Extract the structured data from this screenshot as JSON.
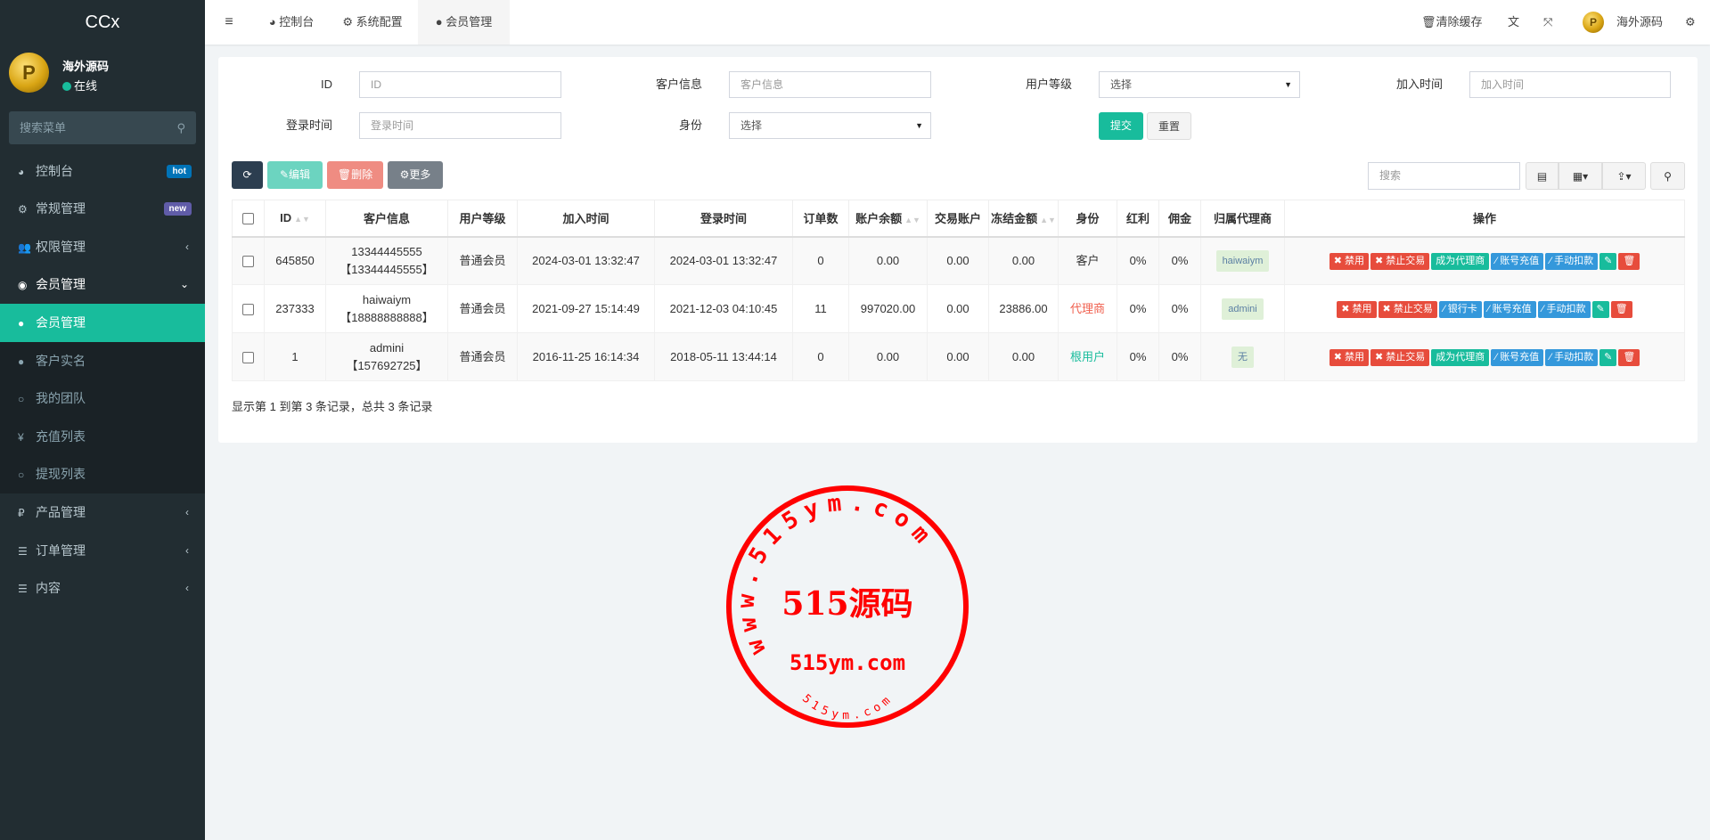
{
  "app": {
    "logo": "CCx"
  },
  "user": {
    "name": "海外源码",
    "status": "在线"
  },
  "sidebar": {
    "search_placeholder": "搜索菜单",
    "items": [
      {
        "label": "控制台",
        "icon": "dashboard-icon",
        "badge": "hot",
        "badge_color": "#0073b7"
      },
      {
        "label": "常规管理",
        "icon": "cogs-icon",
        "badge": "new",
        "badge_color": "#605ca8"
      },
      {
        "label": "权限管理",
        "icon": "group-icon"
      },
      {
        "label": "会员管理",
        "icon": "user-circle-icon",
        "expanded": true
      },
      {
        "label": "产品管理",
        "icon": "ruble-icon"
      },
      {
        "label": "订单管理",
        "icon": "list-icon"
      },
      {
        "label": "内容",
        "icon": "list-icon"
      }
    ],
    "submenu": [
      {
        "label": "会员管理",
        "icon": "user-icon",
        "active": true
      },
      {
        "label": "客户实名",
        "icon": "user-icon"
      },
      {
        "label": "我的团队",
        "icon": "circle-icon"
      },
      {
        "label": "充值列表",
        "icon": "yen-icon"
      },
      {
        "label": "提现列表",
        "icon": "circle-icon"
      }
    ]
  },
  "topbar": {
    "tabs": [
      {
        "label": "控制台",
        "icon": "dashboard-icon"
      },
      {
        "label": "系统配置",
        "icon": "gear-icon"
      },
      {
        "label": "会员管理",
        "icon": "user-icon",
        "active": true
      }
    ],
    "clear_cache": "清除缓存",
    "username": "海外源码"
  },
  "filters": {
    "id": {
      "label": "ID",
      "placeholder": "ID"
    },
    "customer": {
      "label": "客户信息",
      "placeholder": "客户信息"
    },
    "level": {
      "label": "用户等级",
      "value": "选择"
    },
    "join_time": {
      "label": "加入时间",
      "placeholder": "加入时间"
    },
    "login_time": {
      "label": "登录时间",
      "placeholder": "登录时间"
    },
    "identity": {
      "label": "身份",
      "value": "选择"
    },
    "submit": "提交",
    "reset": "重置"
  },
  "toolbar": {
    "edit": "编辑",
    "delete": "删除",
    "more": "更多",
    "search_placeholder": "搜索"
  },
  "table": {
    "columns": [
      "ID",
      "客户信息",
      "用户等级",
      "加入时间",
      "登录时间",
      "订单数",
      "账户余额",
      "交易账户",
      "冻结金额",
      "身份",
      "红利",
      "佣金",
      "归属代理商",
      "操作"
    ],
    "rows": [
      {
        "id": "645850",
        "name": "13344445555",
        "phone": "【13344445555】",
        "level": "普通会员",
        "join": "2024-03-01 13:32:47",
        "login": "2024-03-01 13:32:47",
        "orders": "0",
        "balance": "0.00",
        "trade": "0.00",
        "frozen": "0.00",
        "identity": "客户",
        "identity_color": "#333333",
        "bonus": "0%",
        "commission": "0%",
        "agent": "haiwaiym",
        "actions": [
          "禁用",
          "禁止交易",
          "成为代理商",
          "账号充值",
          "手动扣款"
        ]
      },
      {
        "id": "237333",
        "name": "haiwaiym",
        "phone": "【18888888888】",
        "level": "普通会员",
        "join": "2021-09-27 15:14:49",
        "login": "2021-12-03 04:10:45",
        "orders": "11",
        "balance": "997020.00",
        "trade": "0.00",
        "frozen": "23886.00",
        "identity": "代理商",
        "identity_color": "#f0604f",
        "bonus": "0%",
        "commission": "0%",
        "agent": "admini",
        "actions": [
          "禁用",
          "禁止交易",
          "银行卡",
          "账号充值",
          "手动扣款"
        ]
      },
      {
        "id": "1",
        "name": "admini",
        "phone": "【157692725】",
        "level": "普通会员",
        "join": "2016-11-25 16:14:34",
        "login": "2018-05-11 13:44:14",
        "orders": "0",
        "balance": "0.00",
        "trade": "0.00",
        "frozen": "0.00",
        "identity": "根用户",
        "identity_color": "#18bc9c",
        "bonus": "0%",
        "commission": "0%",
        "agent": "无",
        "actions": [
          "禁用",
          "禁止交易",
          "成为代理商",
          "账号充值",
          "手动扣款"
        ]
      }
    ]
  },
  "footer": {
    "summary": "显示第 1 到第 3 条记录，总共 3 条记录"
  },
  "watermark": {
    "ring": "www.515ym.com",
    "title": "515源码",
    "domain": "515ym.com",
    "small": "515ym.com",
    "color": "#ff0000"
  }
}
